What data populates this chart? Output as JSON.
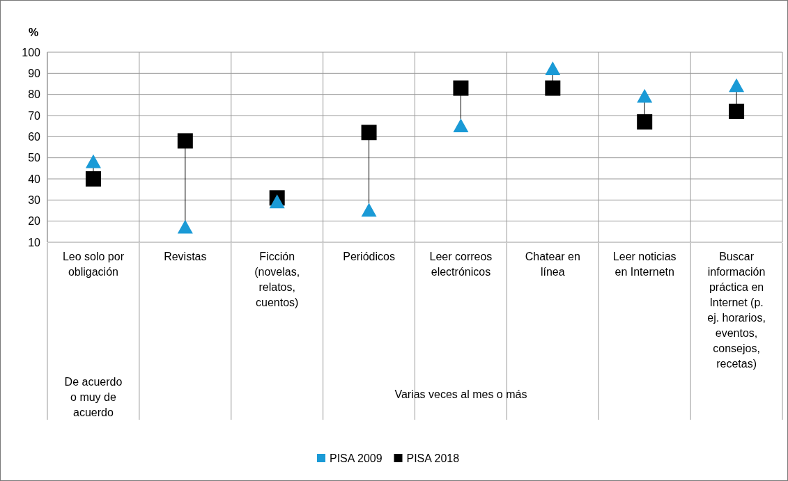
{
  "chart_data": {
    "type": "scatter",
    "ylabel": "%",
    "categories": [
      "Leo solo por obligación",
      "Revistas",
      "Ficción (novelas, relatos, cuentos)",
      "Periódicos",
      "Leer correos electrónicos",
      "Chatear en línea",
      "Leer noticias en Internetn",
      "Buscar información práctica en Internet (p. ej. horarios, eventos, consejos, recetas)"
    ],
    "series": [
      {
        "name": "PISA 2009",
        "color": "#1a9ad6",
        "marker": "triangle",
        "values": [
          48,
          17,
          29,
          25,
          65,
          92,
          79,
          84
        ]
      },
      {
        "name": "PISA 2018",
        "color": "#000000",
        "marker": "square",
        "values": [
          40,
          58,
          31,
          62,
          83,
          83,
          67,
          72
        ]
      }
    ],
    "ylim": [
      10,
      100
    ],
    "yticks": [
      10,
      20,
      30,
      40,
      50,
      60,
      70,
      80,
      90,
      100
    ],
    "grid": "y",
    "legend": "bottom",
    "annotations": [
      "De acuerdo o muy de acuerdo",
      "Varias veces al mes o más"
    ]
  }
}
